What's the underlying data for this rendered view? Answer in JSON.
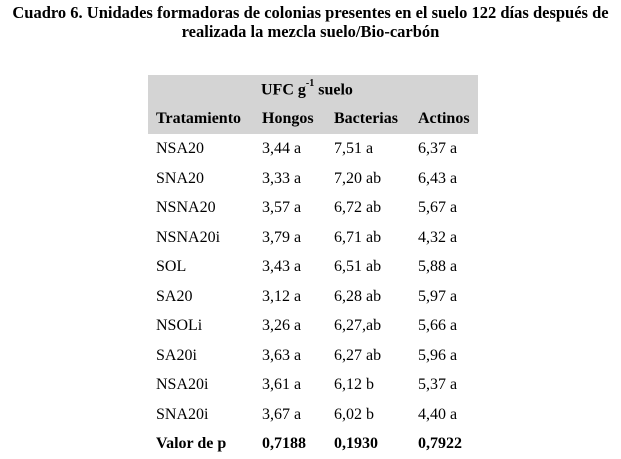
{
  "caption": {
    "line1": "Cuadro 6. Unidades formadoras de colonias presentes en el suelo 122 días después de",
    "line2": "realizada la mezcla suelo/Bio-carbón"
  },
  "table": {
    "group_header_prefix": "UFC g",
    "group_header_sup": "-1",
    "group_header_suffix": " suelo",
    "columns": [
      "Tratamiento",
      "Hongos",
      "Bacterias",
      "Actinos"
    ],
    "rows": [
      [
        "NSA20",
        "3,44 a",
        "7,51 a",
        "6,37 a"
      ],
      [
        "SNA20",
        "3,33 a",
        "7,20 ab",
        "6,43 a"
      ],
      [
        "NSNA20",
        "3,57 a",
        "6,72 ab",
        "5,67 a"
      ],
      [
        "NSNA20i",
        "3,79 a",
        "6,71 ab",
        "4,32 a"
      ],
      [
        "SOL",
        "3,43 a",
        "6,51 ab",
        "5,88 a"
      ],
      [
        "SA20",
        "3,12 a",
        "6,28 ab",
        "5,97 a"
      ],
      [
        "NSOLi",
        "3,26 a",
        "6,27,ab",
        "5,66 a"
      ],
      [
        "SA20i",
        "3,63 a",
        "6,27 ab",
        "5,96 a"
      ],
      [
        "NSA20i",
        "3,61 a",
        "6,12 b",
        "5,37 a"
      ],
      [
        "SNA20i",
        "3,67 a",
        "6,02 b",
        "4,40 a"
      ]
    ],
    "footer": [
      "Valor de p",
      "0,7188",
      "0,1930",
      "0,7922"
    ]
  },
  "colors": {
    "header_background": "#d4d4d4",
    "text": "#000000"
  }
}
